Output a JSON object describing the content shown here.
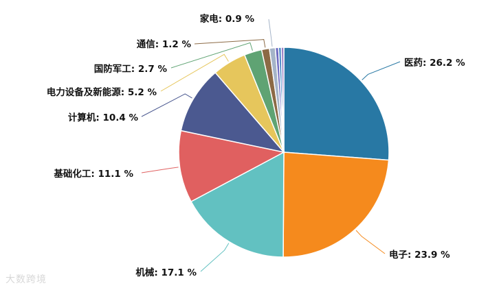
{
  "chart_data": {
    "type": "pie",
    "slices": [
      {
        "name": "医药",
        "value": 26.2,
        "label": "医药: 26.2 %",
        "color": "#2878A4"
      },
      {
        "name": "电子",
        "value": 23.9,
        "label": "电子: 23.9 %",
        "color": "#F58A1D"
      },
      {
        "name": "机械",
        "value": 17.1,
        "label": "机械: 17.1 %",
        "color": "#62C1C1"
      },
      {
        "name": "基础化工",
        "value": 11.1,
        "label": "基础化工: 11.1 %",
        "color": "#E06060"
      },
      {
        "name": "计算机",
        "value": 10.4,
        "label": "计算机: 10.4 %",
        "color": "#4B5990"
      },
      {
        "name": "电力设备及新能源",
        "value": 5.2,
        "label": "电力设备及新能源: 5.2 %",
        "color": "#E6C65C"
      },
      {
        "name": "国防军工",
        "value": 2.7,
        "label": "国防军工: 2.7 %",
        "color": "#5FA373"
      },
      {
        "name": "通信",
        "value": 1.2,
        "label": "通信: 1.2 %",
        "color": "#8C6A45"
      },
      {
        "name": "家电",
        "value": 0.9,
        "label": "家电: 0.9 %",
        "color": "#A5B4C8"
      },
      {
        "name": "",
        "value": 0.5,
        "label": "",
        "color": "#6E6BC0"
      },
      {
        "name": "",
        "value": 0.4,
        "label": "",
        "color": "#3C7FC1"
      },
      {
        "name": "",
        "value": 0.4,
        "label": "",
        "color": "#9A7FC5"
      }
    ]
  },
  "watermark": "大数跨境"
}
